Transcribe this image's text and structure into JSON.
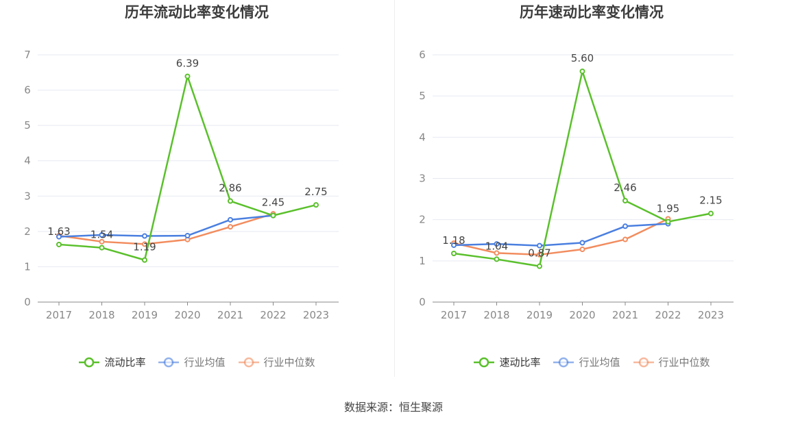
{
  "source": "数据来源：恒生聚源",
  "colors": {
    "company": "#5ac02b",
    "industry_avg": "#4a7fe0",
    "industry_median": "#f28c5e",
    "grid": "#e6e9f2",
    "axis": "#888888"
  },
  "chart_data": [
    {
      "type": "line",
      "title": "历年流动比率变化情况",
      "categories": [
        "2017",
        "2018",
        "2019",
        "2020",
        "2021",
        "2022",
        "2023"
      ],
      "ylim": [
        0,
        7
      ],
      "yticks": [
        "0",
        "1",
        "2",
        "3",
        "4",
        "5",
        "6",
        "7"
      ],
      "grid": true,
      "legend_position": "bottom",
      "series": [
        {
          "name": "流动比率",
          "key": "company",
          "values": [
            1.63,
            1.54,
            1.19,
            6.39,
            2.86,
            2.45,
            2.75
          ],
          "labels": [
            "1.63",
            "1.54",
            "1.19",
            "6.39",
            "2.86",
            "2.45",
            "2.75"
          ]
        },
        {
          "name": "行业均值",
          "key": "industry_avg",
          "values": [
            1.85,
            1.9,
            1.87,
            1.88,
            2.33,
            2.45,
            null
          ]
        },
        {
          "name": "行业中位数",
          "key": "industry_median",
          "values": [
            1.88,
            1.71,
            1.64,
            1.77,
            2.13,
            2.5,
            null
          ]
        }
      ]
    },
    {
      "type": "line",
      "title": "历年速动比率变化情况",
      "categories": [
        "2017",
        "2018",
        "2019",
        "2020",
        "2021",
        "2022",
        "2023"
      ],
      "ylim": [
        0,
        6
      ],
      "yticks": [
        "0",
        "1",
        "2",
        "3",
        "4",
        "5",
        "6"
      ],
      "grid": true,
      "legend_position": "bottom",
      "series": [
        {
          "name": "速动比率",
          "key": "company",
          "values": [
            1.18,
            1.04,
            0.87,
            5.6,
            2.46,
            1.95,
            2.15
          ],
          "labels": [
            "1.18",
            "1.04",
            "0.87",
            "5.60",
            "2.46",
            "1.95",
            "2.15"
          ]
        },
        {
          "name": "行业均值",
          "key": "industry_avg",
          "values": [
            1.38,
            1.41,
            1.37,
            1.44,
            1.84,
            1.9,
            null
          ]
        },
        {
          "name": "行业中位数",
          "key": "industry_median",
          "values": [
            1.43,
            1.19,
            1.15,
            1.28,
            1.52,
            2.02,
            null
          ]
        }
      ]
    }
  ]
}
